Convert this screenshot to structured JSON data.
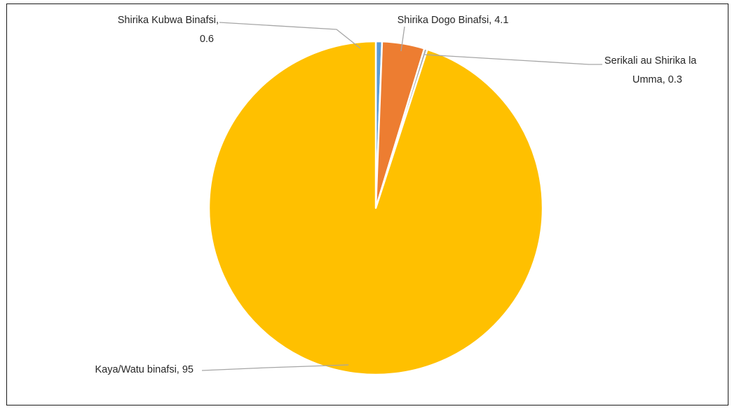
{
  "chart_data": {
    "type": "pie",
    "title": "",
    "start_angle_deg": 0,
    "direction": "clockwise",
    "slices": [
      {
        "label": "Shirika Kubwa Binafsi",
        "value": 0.6,
        "display": "Shirika Kubwa Binafsi, 0.6",
        "label_lines": [
          "Shirika Kubwa Binafsi,",
          "0.6"
        ],
        "color": "#5b9bd5"
      },
      {
        "label": "Shirika Dogo Binafsi",
        "value": 4.1,
        "display": "Shirika Dogo Binafsi, 4.1",
        "label_lines": [
          "Shirika Dogo Binafsi, 4.1"
        ],
        "color": "#ed7d31"
      },
      {
        "label": "Serikali au Shirika la Umma",
        "value": 0.3,
        "display": "Serikali au Shirika la Umma, 0.3",
        "label_lines": [
          "Serikali au Shirika la",
          "Umma, 0.3"
        ],
        "color": "#a5a5a5"
      },
      {
        "label": "Kaya/Watu binafsi",
        "value": 95,
        "display": "Kaya/Watu binafsi, 95",
        "label_lines": [
          "Kaya/Watu binafsi, 95"
        ],
        "color": "#ffc000"
      }
    ],
    "legend": "none",
    "label_style": "outside with leader lines"
  }
}
